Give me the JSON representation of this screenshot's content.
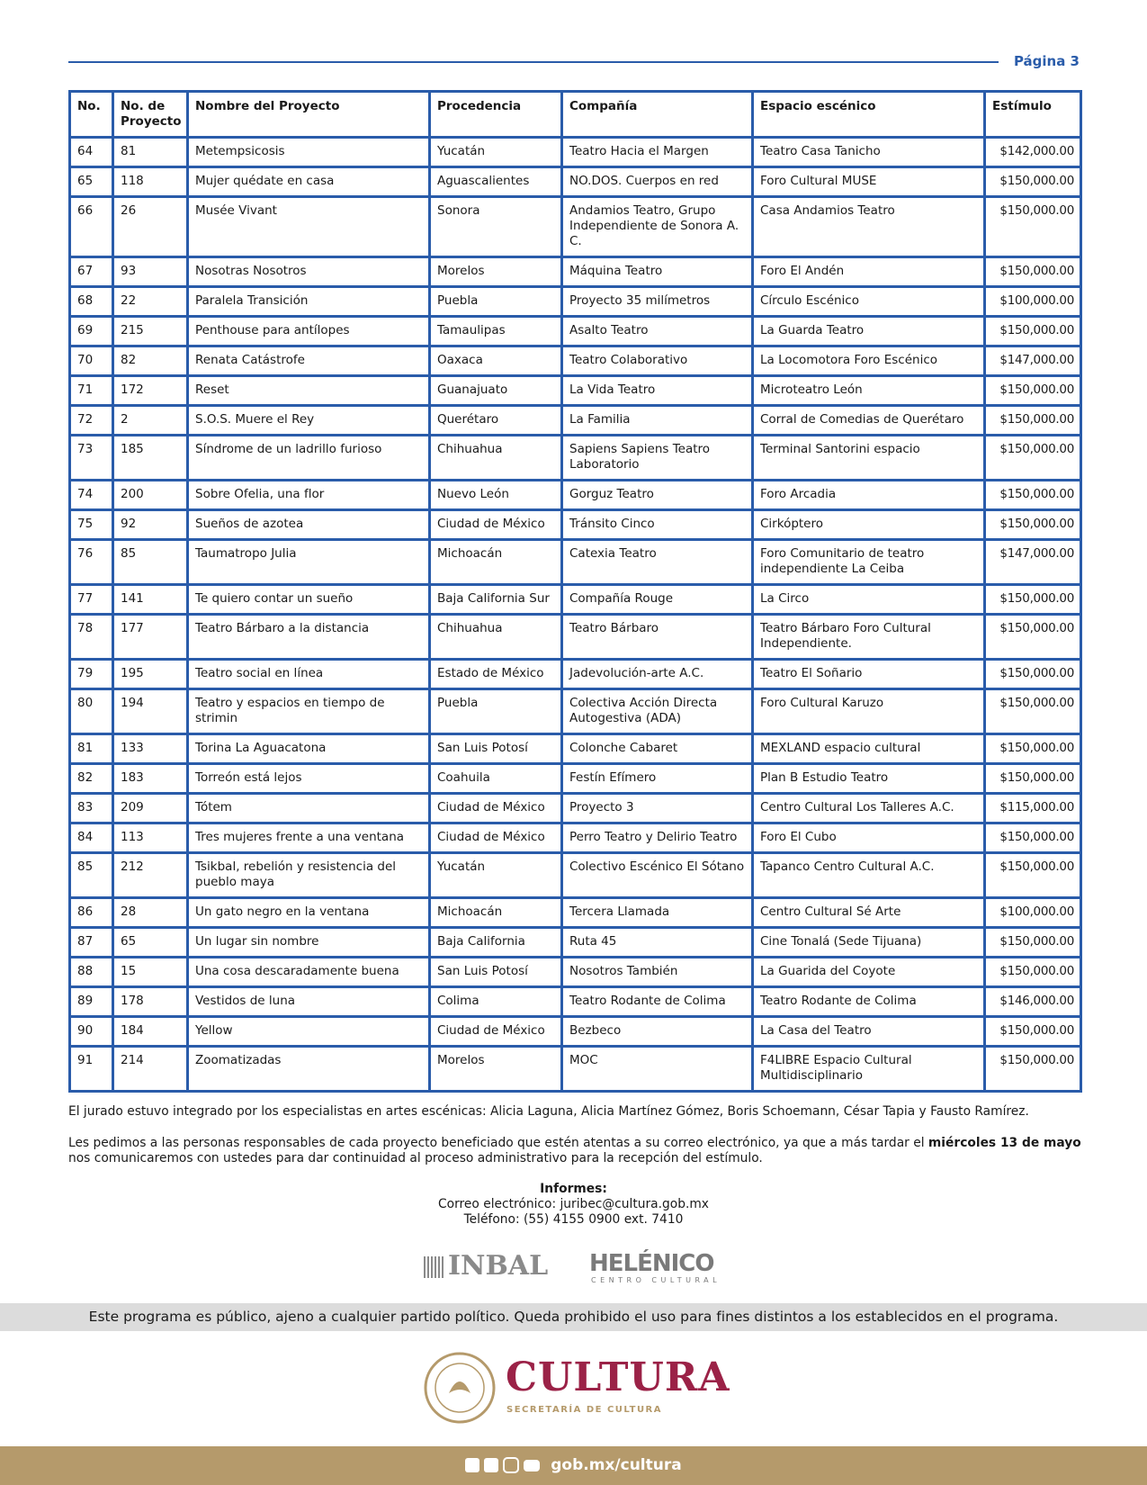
{
  "header": {
    "page": "Página 3"
  },
  "table": {
    "columns": [
      "No.",
      "No. de Proyecto",
      "Nombre del Proyecto",
      "Procedencia",
      "Compañía",
      "Espacio escénico",
      "Estímulo"
    ],
    "rows": [
      [
        "64",
        "81",
        "Metempsicosis",
        "Yucatán",
        "Teatro Hacia el Margen",
        "Teatro Casa Tanicho",
        "$142,000.00"
      ],
      [
        "65",
        "118",
        "Mujer quédate en casa",
        "Aguascalientes",
        "NO.DOS. Cuerpos en red",
        "Foro Cultural MUSE",
        "$150,000.00"
      ],
      [
        "66",
        "26",
        "Musée Vivant",
        "Sonora",
        "Andamios Teatro, Grupo Independiente de Sonora A. C.",
        "Casa Andamios Teatro",
        "$150,000.00"
      ],
      [
        "67",
        "93",
        "Nosotras Nosotros",
        "Morelos",
        "Máquina Teatro",
        "Foro El Andén",
        "$150,000.00"
      ],
      [
        "68",
        "22",
        "Paralela Transición",
        "Puebla",
        "Proyecto 35 milímetros",
        "Círculo Escénico",
        "$100,000.00"
      ],
      [
        "69",
        "215",
        "Penthouse para antílopes",
        "Tamaulipas",
        "Asalto Teatro",
        "La Guarda Teatro",
        "$150,000.00"
      ],
      [
        "70",
        "82",
        "Renata Catástrofe",
        "Oaxaca",
        "Teatro Colaborativo",
        "La Locomotora Foro Escénico",
        "$147,000.00"
      ],
      [
        "71",
        "172",
        "Reset",
        "Guanajuato",
        "La Vida Teatro",
        "Microteatro León",
        "$150,000.00"
      ],
      [
        "72",
        "2",
        "S.O.S. Muere el Rey",
        "Querétaro",
        "La Familia",
        "Corral de Comedias de Querétaro",
        "$150,000.00"
      ],
      [
        "73",
        "185",
        "Síndrome de un ladrillo furioso",
        "Chihuahua",
        "Sapiens Sapiens Teatro Laboratorio",
        "Terminal Santorini espacio",
        "$150,000.00"
      ],
      [
        "74",
        "200",
        "Sobre Ofelia, una flor",
        "Nuevo León",
        "Gorguz Teatro",
        "Foro Arcadia",
        "$150,000.00"
      ],
      [
        "75",
        "92",
        "Sueños de azotea",
        "Ciudad de México",
        "Tránsito Cinco",
        "Cirkóptero",
        "$150,000.00"
      ],
      [
        "76",
        "85",
        "Taumatropo Julia",
        "Michoacán",
        "Catexia Teatro",
        "Foro Comunitario de teatro independiente La Ceiba",
        "$147,000.00"
      ],
      [
        "77",
        "141",
        "Te quiero contar un sueño",
        "Baja California Sur",
        "Compañía Rouge",
        "La Circo",
        "$150,000.00"
      ],
      [
        "78",
        "177",
        "Teatro Bárbaro a la distancia",
        "Chihuahua",
        "Teatro Bárbaro",
        "Teatro Bárbaro Foro Cultural Independiente.",
        "$150,000.00"
      ],
      [
        "79",
        "195",
        "Teatro social en línea",
        "Estado de México",
        "Jadevolución-arte A.C.",
        "Teatro El Soñario",
        "$150,000.00"
      ],
      [
        "80",
        "194",
        "Teatro y espacios en tiempo de strimin",
        "Puebla",
        "Colectiva Acción Directa Autogestiva (ADA)",
        "Foro Cultural Karuzo",
        "$150,000.00"
      ],
      [
        "81",
        "133",
        "Torina La Aguacatona",
        "San Luis Potosí",
        "Colonche Cabaret",
        "MEXLAND espacio cultural",
        "$150,000.00"
      ],
      [
        "82",
        "183",
        "Torreón está lejos",
        "Coahuila",
        "Festín Efímero",
        "Plan B Estudio Teatro",
        "$150,000.00"
      ],
      [
        "83",
        "209",
        "Tótem",
        "Ciudad de México",
        "Proyecto 3",
        "Centro Cultural Los Talleres A.C.",
        "$115,000.00"
      ],
      [
        "84",
        "113",
        "Tres mujeres frente a una ventana",
        "Ciudad de México",
        "Perro Teatro y Delirio Teatro",
        "Foro El Cubo",
        "$150,000.00"
      ],
      [
        "85",
        "212",
        "Tsikbal, rebelión y resistencia del pueblo maya",
        "Yucatán",
        "Colectivo Escénico El Sótano",
        "Tapanco Centro Cultural A.C.",
        "$150,000.00"
      ],
      [
        "86",
        "28",
        "Un gato negro en la ventana",
        "Michoacán",
        "Tercera Llamada",
        "Centro Cultural Sé Arte",
        "$100,000.00"
      ],
      [
        "87",
        "65",
        "Un lugar sin nombre",
        "Baja California",
        "Ruta 45",
        "Cine Tonalá (Sede Tijuana)",
        "$150,000.00"
      ],
      [
        "88",
        "15",
        "Una cosa descaradamente buena",
        "San Luis Potosí",
        "Nosotros También",
        "La Guarida del Coyote",
        "$150,000.00"
      ],
      [
        "89",
        "178",
        "Vestidos de luna",
        "Colima",
        "Teatro Rodante de Colima",
        "Teatro Rodante de Colima",
        "$146,000.00"
      ],
      [
        "90",
        "184",
        "Yellow",
        "Ciudad de México",
        "Bezbeco",
        "La Casa del Teatro",
        "$150,000.00"
      ],
      [
        "91",
        "214",
        "Zoomatizadas",
        "Morelos",
        "MOC",
        "F4LIBRE Espacio Cultural Multidisciplinario",
        "$150,000.00"
      ]
    ]
  },
  "jury_note": "El jurado estuvo integrado por los especialistas en artes escénicas: Alicia Laguna, Alicia Martínez Gómez, Boris Schoemann, César Tapia y Fausto Ramírez.",
  "notice": {
    "before": "Les pedimos a las personas responsables de cada proyecto beneficiado que estén atentas a su correo electrónico, ya que a más tardar el",
    "bold": "miércoles 13 de mayo",
    "after": "nos comunicaremos con ustedes para dar continuidad al proceso administrativo para la recepción del estímulo."
  },
  "informes": {
    "title": "Informes:",
    "email": "Correo electrónico: juribec@cultura.gob.mx",
    "phone": "Teléfono: (55) 4155 0900 ext. 7410"
  },
  "logos": {
    "inbal": "INBAL",
    "helenico": "HELÉNICO",
    "helenico_sub": "CENTRO CULTURAL"
  },
  "disclaimer": "Este programa es público, ajeno a cualquier partido político. Queda prohibido el uso para fines distintos a los establecidos en el programa.",
  "brand": {
    "name": "CULTURA",
    "sub": "SECRETARÍA DE CULTURA"
  },
  "footer": {
    "url": "gob.mx/cultura"
  }
}
